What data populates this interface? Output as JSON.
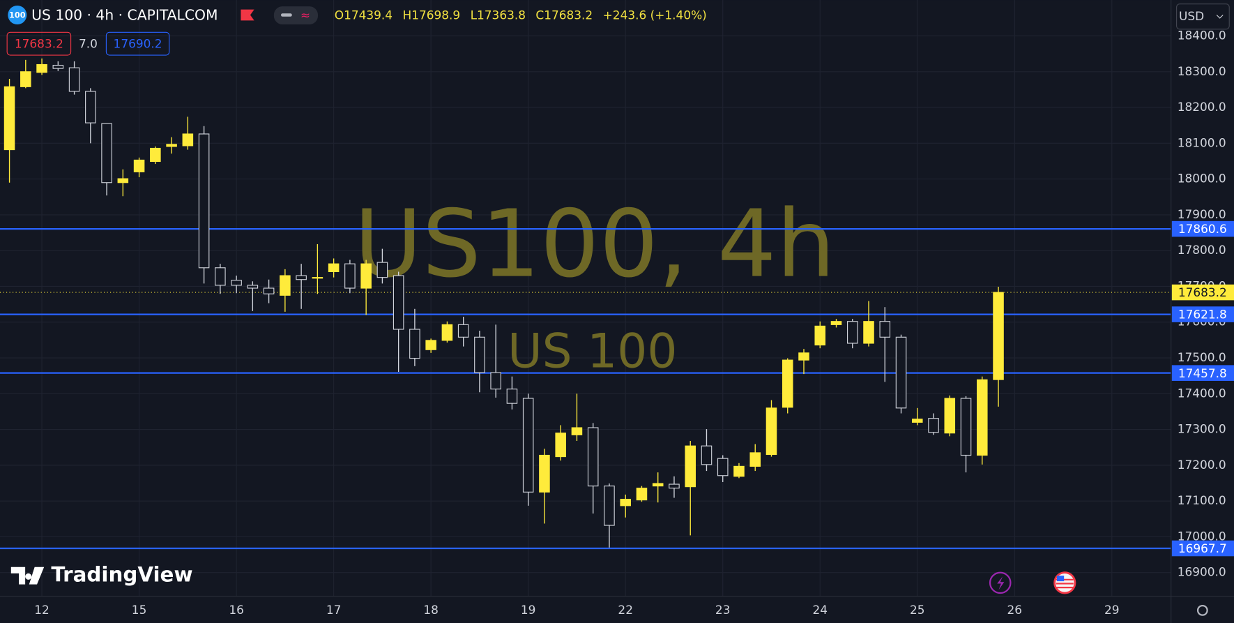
{
  "header": {
    "logo": "100",
    "symbol": "US 100 · 4h · CAPITALCOM",
    "ohlc": [
      "O17439.4",
      "H17698.9",
      "L17363.8",
      "C17683.2",
      "+243.6 (+1.40%)"
    ],
    "bid": "17683.2",
    "spread": "7.0",
    "ask": "17690.2",
    "currency": "USD"
  },
  "watermark": {
    "title": "US100, 4h",
    "subtitle": "US 100"
  },
  "branding": "TradingView",
  "chart_data": {
    "type": "candlestick",
    "x": [
      0,
      1,
      2,
      3,
      4,
      5,
      6,
      7,
      8,
      9,
      10,
      11,
      12,
      13,
      14,
      15,
      16,
      17,
      18,
      19,
      20,
      21,
      22,
      23,
      24,
      25,
      26,
      27,
      28,
      29,
      30,
      31,
      32,
      33,
      34,
      35,
      36,
      37,
      38,
      39,
      40,
      41,
      42,
      43,
      44,
      45,
      46,
      47,
      48,
      49,
      50,
      51,
      52,
      53,
      54,
      55,
      56,
      57,
      58,
      59,
      60,
      61
    ],
    "open": [
      18082,
      18258,
      18298,
      18318,
      18311,
      18245,
      18155,
      17990,
      18020,
      18049,
      18091,
      18093,
      18126,
      17752,
      17717,
      17703,
      17695,
      17675,
      17730,
      17723,
      17741,
      17763,
      17695,
      17767,
      17730,
      17580,
      17523,
      17549,
      17593,
      17558,
      17459,
      17413,
      17387,
      17125,
      17224,
      17285,
      17305,
      17142,
      17087,
      17103,
      17142,
      17147,
      17140,
      17254,
      17219,
      17169,
      17197,
      17230,
      17362,
      17494,
      17536,
      17593,
      17602,
      17541,
      17602,
      17558,
      17320,
      17331,
      17290,
      17387,
      17228,
      17439.4
    ],
    "high": [
      18280,
      18333,
      18337,
      18329,
      18329,
      18254,
      18155,
      18027,
      18060,
      18091,
      18117,
      18174,
      18148,
      17763,
      17730,
      17714,
      17719,
      17748,
      17763,
      17818,
      17778,
      17774,
      17774,
      17805,
      17741,
      17637,
      17554,
      17602,
      17615,
      17576,
      17593,
      17448,
      17400,
      17246,
      17312,
      17400,
      17318,
      17149,
      17118,
      17142,
      17180,
      17169,
      17268,
      17301,
      17228,
      17206,
      17259,
      17382,
      17499,
      17525,
      17602,
      17609,
      17609,
      17659,
      17642,
      17565,
      17360,
      17345,
      17395,
      17393,
      17448,
      17698.9
    ],
    "low": [
      17990,
      18254,
      18291,
      18302,
      18236,
      18100,
      17954,
      17952,
      18005,
      18042,
      18071,
      18082,
      17708,
      17679,
      17681,
      17631,
      17653,
      17629,
      17637,
      17679,
      17725,
      17681,
      17620,
      17708,
      17461,
      17477,
      17514,
      17543,
      17532,
      17404,
      17389,
      17356,
      17087,
      17037,
      17213,
      17268,
      17065,
      16970,
      17054,
      17098,
      17096,
      17109,
      17004,
      17184,
      17153,
      17164,
      17184,
      17224,
      17345,
      17455,
      17527,
      17585,
      17527,
      17532,
      17433,
      17345,
      17312,
      17285,
      17281,
      17180,
      17202,
      17363.8
    ],
    "close": [
      18258,
      18300,
      18320,
      18309,
      18245,
      18157,
      17990,
      18001,
      18053,
      18086,
      18097,
      18126,
      17752,
      17703,
      17703,
      17695,
      17679,
      17730,
      17719,
      17725,
      17763,
      17695,
      17763,
      17725,
      17580,
      17499,
      17549,
      17593,
      17558,
      17459,
      17413,
      17373,
      17125,
      17228,
      17290,
      17305,
      17142,
      17032,
      17105,
      17136,
      17149,
      17136,
      17254,
      17202,
      17171,
      17197,
      17235,
      17360,
      17494,
      17514,
      17589,
      17602,
      17541,
      17602,
      17558,
      17360,
      17329,
      17292,
      17387,
      17228,
      17439,
      17683.2
    ],
    "up_color": "#ffeb3b",
    "down_color": "#d1d4dc",
    "xlim": [
      -0.583,
      71.65
    ],
    "ylim": [
      16834,
      18500.3
    ],
    "xticks": [
      {
        "value": 2,
        "label": "12"
      },
      {
        "value": 8,
        "label": "15"
      },
      {
        "value": 14,
        "label": "16"
      },
      {
        "value": 20,
        "label": "17"
      },
      {
        "value": 26,
        "label": "18"
      },
      {
        "value": 32,
        "label": "19"
      },
      {
        "value": 38,
        "label": "22"
      },
      {
        "value": 44,
        "label": "23"
      },
      {
        "value": 50,
        "label": "24"
      },
      {
        "value": 56,
        "label": "25"
      },
      {
        "value": 62,
        "label": "26"
      },
      {
        "value": 68,
        "label": "29"
      }
    ],
    "yticks": [
      {
        "value": 16900,
        "label": "16900.0"
      },
      {
        "value": 17000,
        "label": "17000.0"
      },
      {
        "value": 17100,
        "label": "17100.0"
      },
      {
        "value": 17200,
        "label": "17200.0"
      },
      {
        "value": 17300,
        "label": "17300.0"
      },
      {
        "value": 17400,
        "label": "17400.0"
      },
      {
        "value": 17500,
        "label": "17500.0"
      },
      {
        "value": 17600,
        "label": "17600.0"
      },
      {
        "value": 17700,
        "label": "17700.0"
      },
      {
        "value": 17800,
        "label": "17800.0"
      },
      {
        "value": 17900,
        "label": "17900.0"
      },
      {
        "value": 18000,
        "label": "18000.0"
      },
      {
        "value": 18100,
        "label": "18100.0"
      },
      {
        "value": 18200,
        "label": "18200.0"
      },
      {
        "value": 18300,
        "label": "18300.0"
      },
      {
        "value": 18400,
        "label": "18400.0"
      }
    ],
    "grid": true,
    "hlines": [
      {
        "value": 17860.6,
        "color": "#2962ff"
      },
      {
        "value": 17621.8,
        "color": "#2962ff"
      },
      {
        "value": 17457.8,
        "color": "#2962ff"
      },
      {
        "value": 16967.7,
        "color": "#2962ff"
      }
    ],
    "last_price": {
      "value": 17683.2,
      "color": "#ffeb3b"
    }
  }
}
